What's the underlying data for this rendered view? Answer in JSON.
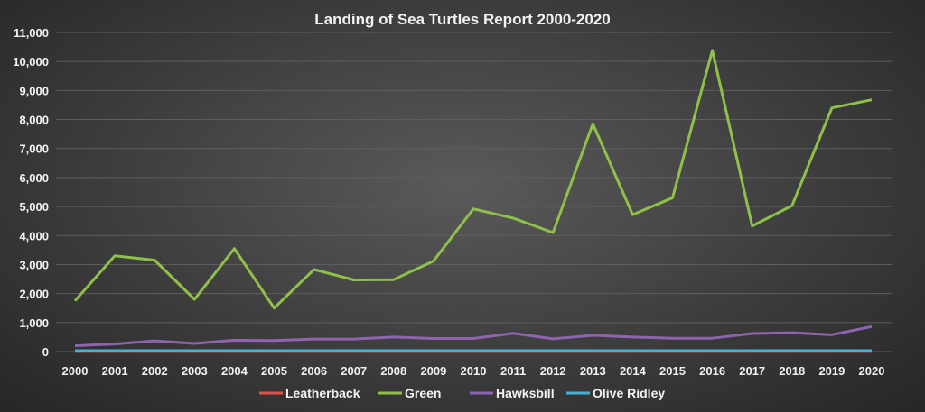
{
  "chart_data": {
    "type": "line",
    "title": "Landing of Sea Turtles Report 2000-2020",
    "xlabel": "",
    "ylabel": "",
    "ylim": [
      0,
      11000
    ],
    "yticks": [
      0,
      1000,
      2000,
      3000,
      4000,
      5000,
      6000,
      7000,
      8000,
      9000,
      10000,
      11000
    ],
    "ytick_labels": [
      "0",
      "1,000",
      "2,000",
      "3,000",
      "4,000",
      "5,000",
      "6,000",
      "7,000",
      "8,000",
      "9,000",
      "10,000",
      "11,000"
    ],
    "grid": true,
    "legend_position": "bottom",
    "categories": [
      "2000",
      "2001",
      "2002",
      "2003",
      "2004",
      "2005",
      "2006",
      "2007",
      "2008",
      "2009",
      "2010",
      "2011",
      "2012",
      "2013",
      "2014",
      "2015",
      "2016",
      "2017",
      "2018",
      "2019",
      "2020"
    ],
    "series": [
      {
        "name": "Leatherback",
        "color": "#e0514b",
        "values": [
          5,
          5,
          5,
          5,
          5,
          5,
          5,
          5,
          5,
          5,
          5,
          5,
          5,
          5,
          5,
          5,
          5,
          5,
          5,
          5,
          5
        ]
      },
      {
        "name": "Green",
        "color": "#8fc04a",
        "values": [
          1750,
          3300,
          3150,
          1800,
          3550,
          1500,
          2830,
          2470,
          2480,
          3120,
          4920,
          4600,
          4100,
          7850,
          4720,
          5300,
          10380,
          4330,
          5030,
          8400,
          8680
        ]
      },
      {
        "name": "Hawksbill",
        "color": "#8e63b0",
        "values": [
          200,
          260,
          370,
          280,
          390,
          380,
          430,
          430,
          500,
          450,
          450,
          630,
          440,
          560,
          500,
          460,
          460,
          620,
          650,
          580,
          860
        ]
      },
      {
        "name": "Olive Ridley",
        "color": "#3fb4d6",
        "values": [
          30,
          30,
          30,
          30,
          30,
          30,
          30,
          30,
          30,
          30,
          30,
          30,
          30,
          30,
          30,
          30,
          30,
          30,
          30,
          30,
          30
        ]
      }
    ]
  }
}
